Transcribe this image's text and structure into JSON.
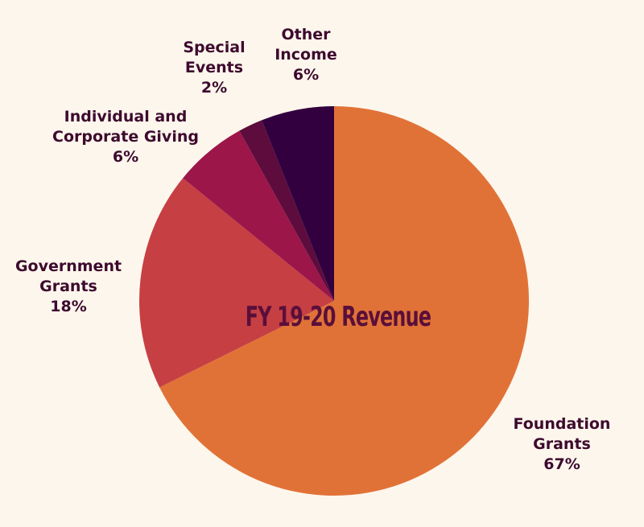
{
  "chart_data": {
    "type": "pie",
    "title": "FY 19-20 Revenue",
    "start": "top",
    "direction": "clockwise",
    "slices": [
      {
        "label_lines": [
          "Foundation",
          "Grants"
        ],
        "percent_text": "67%",
        "value": 67,
        "color": "#e17237"
      },
      {
        "label_lines": [
          "Government",
          "Grants"
        ],
        "percent_text": "18%",
        "value": 18,
        "color": "#c63f43"
      },
      {
        "label_lines": [
          "Individual and",
          "Corporate Giving"
        ],
        "percent_text": "6%",
        "value": 6,
        "color": "#9c1649"
      },
      {
        "label_lines": [
          "Special",
          "Events"
        ],
        "percent_text": "2%",
        "value": 2,
        "color": "#5d0c3d"
      },
      {
        "label_lines": [
          "Other",
          "Income"
        ],
        "percent_text": "6%",
        "value": 6,
        "color": "#33003f"
      }
    ]
  }
}
